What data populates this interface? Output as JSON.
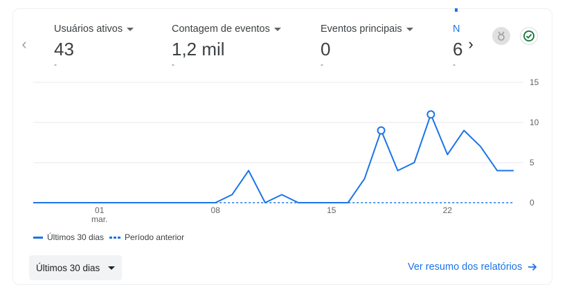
{
  "metrics": [
    {
      "label": "Usuários ativos",
      "value": "43",
      "delta": "-"
    },
    {
      "label": "Contagem de eventos",
      "value": "1,2 mil",
      "delta": "-"
    },
    {
      "label": "Eventos principais",
      "value": "0",
      "delta": "-"
    },
    {
      "label": "N",
      "value": "6",
      "delta": "-"
    }
  ],
  "icons": {
    "prev": "chevron-left-icon",
    "next": "chevron-right-icon",
    "badge": "insights-badge-icon",
    "check": "check-circle-icon"
  },
  "colors": {
    "series": "#1a73e8",
    "grid": "#e8eaed",
    "text": "#5f6368"
  },
  "chart_data": {
    "type": "line",
    "x_tick_labels": [
      "01\nmar.",
      "08",
      "15",
      "22"
    ],
    "y_ticks": [
      "0",
      "5",
      "10",
      "15"
    ],
    "ylim": [
      0,
      15
    ],
    "grid": true,
    "legend_position": "bottom-left",
    "x": [
      1,
      2,
      3,
      4,
      5,
      6,
      7,
      8,
      9,
      10,
      11,
      12,
      13,
      14,
      15,
      16,
      17,
      18,
      19,
      20,
      21,
      22,
      23,
      24,
      25,
      26,
      27,
      28,
      29,
      30
    ],
    "series": [
      {
        "name": "Últimos 30 dias",
        "style": "solid",
        "values": [
          0,
          0,
          0,
          0,
          0,
          0,
          0,
          0,
          0,
          0,
          0,
          0,
          1,
          4,
          0,
          1,
          0,
          0,
          0,
          0,
          3,
          9,
          4,
          5,
          11,
          6,
          9,
          7,
          4,
          4
        ],
        "highlighted": [
          22,
          25
        ]
      },
      {
        "name": "Período anterior",
        "style": "dashed",
        "values": [
          null,
          null,
          null,
          null,
          null,
          null,
          null,
          null,
          null,
          null,
          null,
          0,
          0,
          0,
          0,
          0,
          0,
          0,
          0,
          0,
          0,
          0,
          0,
          0,
          0,
          0,
          0,
          0,
          0,
          0
        ]
      }
    ]
  },
  "footer": {
    "range_label": "Últimos 30 dias",
    "report_link": "Ver resumo dos relatórios",
    "report_link_icon": "arrow-right-icon"
  }
}
